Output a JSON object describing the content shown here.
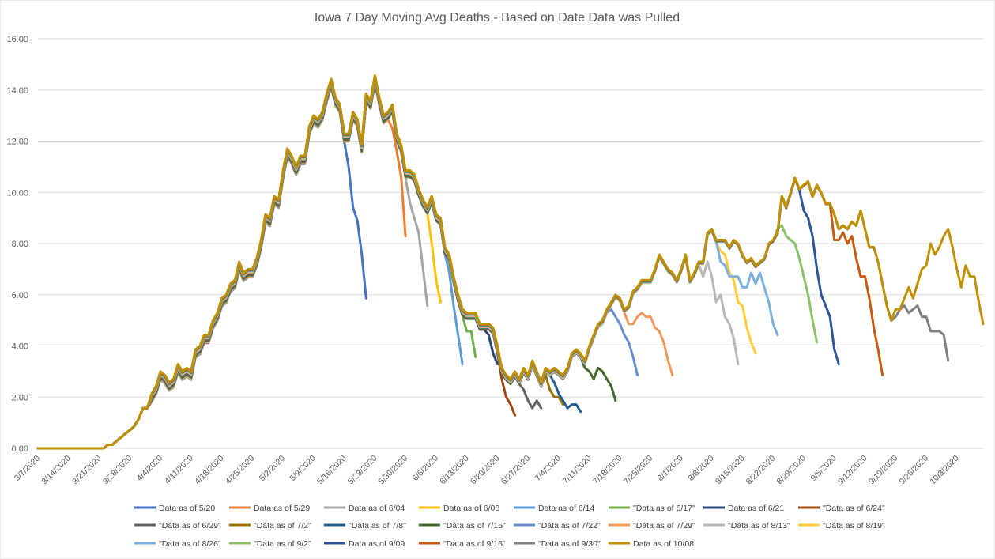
{
  "chart_data": {
    "type": "line",
    "title": "Iowa 7 Day Moving Avg Deaths - Based on Date Data was Pulled",
    "xlabel": "",
    "ylabel": "",
    "ylim": [
      0,
      16
    ],
    "y_ticks": [
      "0.00",
      "2.00",
      "4.00",
      "6.00",
      "8.00",
      "10.00",
      "12.00",
      "14.00",
      "16.00"
    ],
    "x_ticks": [
      "3/7/2020",
      "3/14/2020",
      "3/21/2020",
      "3/28/2020",
      "4/4/2020",
      "4/11/2020",
      "4/18/2020",
      "4/25/2020",
      "5/2/2020",
      "5/9/2020",
      "5/16/2020",
      "5/23/2020",
      "5/30/2020",
      "6/6/2020",
      "6/13/2020",
      "6/20/2020",
      "6/27/2020",
      "7/4/2020",
      "7/11/2020",
      "7/18/2020",
      "7/25/2020",
      "8/1/2020",
      "8/8/2020",
      "8/15/2020",
      "8/22/2020",
      "8/29/2020",
      "9/5/2020",
      "9/12/2020",
      "9/19/2020",
      "9/26/2020",
      "10/3/2020"
    ],
    "x_start_date": "3/7/2020",
    "x_interval_days": 1,
    "grid": true,
    "legend_position": "bottom",
    "base_values": [
      0,
      0,
      0,
      0,
      0,
      0,
      0,
      0,
      0,
      0,
      0,
      0,
      0,
      0,
      0,
      0,
      0.14,
      0.14,
      0.29,
      0.43,
      0.57,
      0.71,
      0.86,
      1.14,
      1.57,
      1.57,
      2.14,
      2.43,
      3.0,
      2.86,
      2.57,
      2.71,
      3.29,
      3.0,
      3.14,
      3.0,
      3.86,
      4.0,
      4.43,
      4.43,
      5.0,
      5.29,
      5.86,
      6.0,
      6.43,
      6.57,
      7.29,
      6.86,
      7.0,
      7.0,
      7.43,
      8.14,
      9.14,
      9.0,
      9.86,
      9.71,
      10.86,
      11.71,
      11.43,
      11.0,
      11.43,
      11.43,
      12.57,
      13.0,
      12.86,
      13.14,
      13.86,
      14.43,
      13.71,
      13.43,
      12.29,
      12.29,
      13.14,
      12.86,
      11.86,
      13.86,
      13.57,
      14.57,
      13.71,
      13.0,
      13.14,
      13.43,
      12.29,
      11.86,
      10.86,
      10.86,
      10.71,
      10.14,
      9.71,
      9.43,
      9.86,
      9.14,
      9.0,
      7.86,
      7.57,
      6.71,
      6.0,
      5.43,
      5.29,
      5.29,
      5.29,
      4.86,
      4.86,
      4.86,
      4.71,
      4.0,
      3.14,
      2.86,
      2.71,
      3.0,
      2.71,
      3.14,
      2.86,
      3.43,
      3.0,
      2.57,
      3.14,
      3.0,
      3.14,
      3.0,
      2.86,
      3.14,
      3.71,
      3.86,
      3.71,
      3.43,
      4.0,
      4.43,
      4.86,
      5.0,
      5.43,
      5.71,
      6.0,
      5.86,
      5.43,
      5.57,
      6.14,
      6.29,
      6.57,
      6.57,
      6.57,
      7.0,
      7.57,
      7.29,
      7.0,
      6.86,
      6.57,
      7.0,
      7.57,
      6.57,
      6.86,
      7.29,
      7.29,
      8.43,
      8.57,
      8.14,
      8.14,
      8.14,
      7.86,
      8.14,
      8.0,
      7.57,
      7.29,
      7.43,
      7.14,
      7.29,
      7.43,
      8.0,
      8.14,
      8.43,
      9.86,
      9.43,
      10.0,
      10.57,
      10.14,
      10.29,
      10.43,
      9.86,
      10.29,
      10.0,
      9.57,
      9.57,
      9.14,
      8.57,
      8.71,
      8.57,
      8.86,
      8.71,
      9.29,
      8.57,
      7.86,
      7.86,
      7.29,
      6.43,
      5.57,
      5.0,
      5.43,
      5.43,
      5.86,
      6.29,
      5.86,
      6.43,
      7.0,
      7.14,
      8.0,
      7.57,
      7.86,
      8.29,
      8.57,
      7.86,
      7.0,
      6.29,
      7.14,
      6.71,
      6.71,
      5.71,
      4.86,
      4.14
    ],
    "series": [
      {
        "name": "Data as of 5/20",
        "color": "#4472c4",
        "cut": 70,
        "ends": [
          11.0,
          9.4,
          8.9,
          7.6,
          5.86
        ]
      },
      {
        "name": "Data as of 5/29",
        "color": "#ed7d31",
        "cut": 80,
        "ends": [
          12.5,
          11.6,
          10.6,
          8.29
        ]
      },
      {
        "name": "Data as of 6/04",
        "color": "#a5a5a5",
        "cut": 84,
        "ends": [
          9.6,
          9.0,
          8.43,
          7.0,
          5.57
        ]
      },
      {
        "name": "Data as of 6/08",
        "color": "#ffc000",
        "cut": 89,
        "ends": [
          8.0,
          6.57,
          5.71
        ]
      },
      {
        "name": "Data as of 6/14",
        "color": "#5b9bd5",
        "cut": 93,
        "ends": [
          6.86,
          5.57,
          4.43,
          3.29
        ]
      },
      {
        "name": "\"Data as of 6/17\"",
        "color": "#70ad47",
        "cut": 97,
        "ends": [
          4.57,
          4.57,
          3.57
        ]
      },
      {
        "name": "Data as of 6/21",
        "color": "#264478",
        "cut": 102,
        "ends": [
          4.43,
          3.71,
          3.29
        ]
      },
      {
        "name": "\"Data as of 6/24\"",
        "color": "#9e480e",
        "cut": 104,
        "ends": [
          3.71,
          2.71,
          2.0,
          1.71,
          1.29
        ]
      },
      {
        "name": "\"Data as of 6/29\"",
        "color": "#636363",
        "cut": 110,
        "ends": [
          2.29,
          1.86,
          1.57,
          1.86,
          1.57
        ]
      },
      {
        "name": "\"Data as of 7/2\"",
        "color": "#997300",
        "cut": 114,
        "ends": [
          2.43,
          2.86,
          2.29,
          2.0,
          2.0,
          1.71
        ]
      },
      {
        "name": "\"Data as of 7/8\"",
        "color": "#255e91",
        "cut": 116,
        "ends": [
          2.86,
          2.57,
          2.14,
          1.86,
          1.57,
          1.71,
          1.71,
          1.43
        ]
      },
      {
        "name": "\"Data as of 7/15\"",
        "color": "#43682b",
        "cut": 124,
        "ends": [
          3.14,
          3.0,
          2.71,
          3.14,
          3.0,
          2.71,
          2.43,
          1.86
        ]
      },
      {
        "name": "\"Data as of 7/22\"",
        "color": "#698ed0",
        "cut": 130,
        "ends": [
          5.43,
          5.14,
          4.86,
          4.43,
          4.14,
          3.57,
          2.86
        ]
      },
      {
        "name": "\"Data as of 7/29\"",
        "color": "#f1975a",
        "cut": 133,
        "ends": [
          5.29,
          4.86,
          4.86,
          5.14,
          5.29,
          5.14,
          5.14,
          4.71,
          4.57,
          4.14,
          3.43,
          2.86
        ]
      },
      {
        "name": "\"Data as of 8/13\"",
        "color": "#b7b7b7",
        "cut": 151,
        "ends": [
          6.71,
          7.29,
          6.71,
          5.71,
          6.0,
          5.14,
          4.86,
          4.29,
          3.29
        ]
      },
      {
        "name": "\"Data as of 8/19\"",
        "color": "#ffcd33",
        "cut": 155,
        "ends": [
          7.71,
          7.57,
          6.86,
          6.57,
          5.71,
          5.57,
          4.71,
          4.14,
          3.71
        ]
      },
      {
        "name": "\"Data as of 8/26\"",
        "color": "#7cafdd",
        "cut": 155,
        "ends": [
          7.29,
          7.14,
          6.71,
          6.71,
          6.71,
          6.29,
          6.29,
          6.86,
          6.43,
          6.86,
          6.29,
          5.71,
          4.86,
          4.43
        ]
      },
      {
        "name": "\"Data as of 9/2\"",
        "color": "#8cc168",
        "cut": 168,
        "ends": [
          8.57,
          8.71,
          8.29,
          8.14,
          8.0,
          7.43,
          6.71,
          6.0,
          5.0,
          4.14
        ]
      },
      {
        "name": "Data as of 9/09",
        "color": "#2f5597",
        "cut": 174,
        "ends": [
          9.29,
          9.0,
          8.29,
          7.0,
          6.0,
          5.57,
          5.14,
          3.86,
          3.29
        ]
      },
      {
        "name": "\"Data as of 9/16\"",
        "color": "#c55a11",
        "cut": 181,
        "ends": [
          8.14,
          8.14,
          8.43,
          8.0,
          8.29,
          7.43,
          6.71,
          6.71,
          5.86,
          4.71,
          3.86,
          2.86
        ]
      },
      {
        "name": "\"Data as of 9/30\"",
        "color": "#7f7f7f",
        "cut": 195,
        "ends": [
          5.14,
          5.43,
          5.57,
          5.29,
          5.43,
          5.57,
          5.14,
          5.14,
          4.57,
          4.57,
          4.57,
          4.43,
          3.43
        ]
      },
      {
        "name": "Data as of 10/08",
        "color": "#bf9000",
        "cut": 216,
        "ends": []
      }
    ]
  }
}
